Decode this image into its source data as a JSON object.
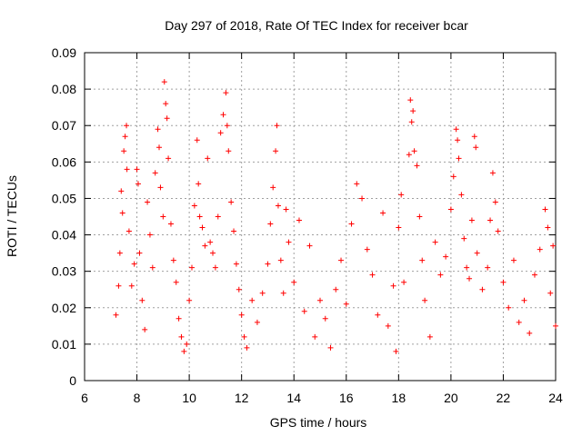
{
  "chart_data": {
    "type": "scatter",
    "title": "Day 297 of 2018, Rate Of TEC Index for receiver bcar",
    "xlabel": "GPS time / hours",
    "ylabel": "ROTI / TECUs",
    "xlim": [
      6,
      24
    ],
    "ylim": [
      0,
      0.09
    ],
    "x_ticks": [
      "6",
      "8",
      "10",
      "12",
      "14",
      "16",
      "18",
      "20",
      "22",
      "24"
    ],
    "y_ticks": [
      "0",
      "0.01",
      "0.02",
      "0.03",
      "0.04",
      "0.05",
      "0.06",
      "0.07",
      "0.08",
      "0.09"
    ],
    "grid": true,
    "marker": "plus",
    "color": "#ff0000",
    "points": [
      [
        7.2,
        0.018
      ],
      [
        7.3,
        0.026
      ],
      [
        7.35,
        0.035
      ],
      [
        7.4,
        0.052
      ],
      [
        7.45,
        0.046
      ],
      [
        7.5,
        0.063
      ],
      [
        7.55,
        0.067
      ],
      [
        7.6,
        0.07
      ],
      [
        7.62,
        0.058
      ],
      [
        7.7,
        0.041
      ],
      [
        7.8,
        0.026
      ],
      [
        7.9,
        0.032
      ],
      [
        8.0,
        0.058
      ],
      [
        8.05,
        0.054
      ],
      [
        8.1,
        0.035
      ],
      [
        8.2,
        0.022
      ],
      [
        8.3,
        0.014
      ],
      [
        8.4,
        0.049
      ],
      [
        8.5,
        0.04
      ],
      [
        8.6,
        0.031
      ],
      [
        8.7,
        0.057
      ],
      [
        8.8,
        0.069
      ],
      [
        8.85,
        0.064
      ],
      [
        8.9,
        0.053
      ],
      [
        9.0,
        0.045
      ],
      [
        9.05,
        0.082
      ],
      [
        9.1,
        0.076
      ],
      [
        9.15,
        0.072
      ],
      [
        9.2,
        0.061
      ],
      [
        9.3,
        0.043
      ],
      [
        9.4,
        0.033
      ],
      [
        9.5,
        0.027
      ],
      [
        9.6,
        0.017
      ],
      [
        9.7,
        0.012
      ],
      [
        9.8,
        0.008
      ],
      [
        9.9,
        0.01
      ],
      [
        10.0,
        0.022
      ],
      [
        10.1,
        0.031
      ],
      [
        10.2,
        0.048
      ],
      [
        10.3,
        0.066
      ],
      [
        10.35,
        0.054
      ],
      [
        10.4,
        0.045
      ],
      [
        10.5,
        0.042
      ],
      [
        10.6,
        0.037
      ],
      [
        10.7,
        0.061
      ],
      [
        10.8,
        0.038
      ],
      [
        10.9,
        0.035
      ],
      [
        11.0,
        0.031
      ],
      [
        11.1,
        0.045
      ],
      [
        11.2,
        0.068
      ],
      [
        11.3,
        0.073
      ],
      [
        11.4,
        0.079
      ],
      [
        11.45,
        0.07
      ],
      [
        11.5,
        0.063
      ],
      [
        11.6,
        0.049
      ],
      [
        11.7,
        0.041
      ],
      [
        11.8,
        0.032
      ],
      [
        11.9,
        0.025
      ],
      [
        12.0,
        0.018
      ],
      [
        12.1,
        0.012
      ],
      [
        12.2,
        0.009
      ],
      [
        12.4,
        0.022
      ],
      [
        12.6,
        0.016
      ],
      [
        12.8,
        0.024
      ],
      [
        13.0,
        0.032
      ],
      [
        13.1,
        0.043
      ],
      [
        13.2,
        0.053
      ],
      [
        13.3,
        0.063
      ],
      [
        13.35,
        0.07
      ],
      [
        13.4,
        0.048
      ],
      [
        13.5,
        0.033
      ],
      [
        13.6,
        0.024
      ],
      [
        13.7,
        0.047
      ],
      [
        13.8,
        0.038
      ],
      [
        14.0,
        0.027
      ],
      [
        14.2,
        0.044
      ],
      [
        14.4,
        0.019
      ],
      [
        14.6,
        0.037
      ],
      [
        14.8,
        0.012
      ],
      [
        15.0,
        0.022
      ],
      [
        15.2,
        0.017
      ],
      [
        15.4,
        0.009
      ],
      [
        15.6,
        0.025
      ],
      [
        15.8,
        0.033
      ],
      [
        16.0,
        0.021
      ],
      [
        16.2,
        0.043
      ],
      [
        16.4,
        0.054
      ],
      [
        16.6,
        0.05
      ],
      [
        16.8,
        0.036
      ],
      [
        17.0,
        0.029
      ],
      [
        17.2,
        0.018
      ],
      [
        17.4,
        0.046
      ],
      [
        17.6,
        0.015
      ],
      [
        17.8,
        0.026
      ],
      [
        17.9,
        0.008
      ],
      [
        18.0,
        0.042
      ],
      [
        18.1,
        0.051
      ],
      [
        18.2,
        0.027
      ],
      [
        18.4,
        0.062
      ],
      [
        18.45,
        0.077
      ],
      [
        18.5,
        0.071
      ],
      [
        18.55,
        0.074
      ],
      [
        18.6,
        0.063
      ],
      [
        18.7,
        0.059
      ],
      [
        18.8,
        0.045
      ],
      [
        18.9,
        0.033
      ],
      [
        19.0,
        0.022
      ],
      [
        19.2,
        0.012
      ],
      [
        19.4,
        0.038
      ],
      [
        19.6,
        0.029
      ],
      [
        19.8,
        0.034
      ],
      [
        20.0,
        0.047
      ],
      [
        20.1,
        0.056
      ],
      [
        20.2,
        0.069
      ],
      [
        20.25,
        0.066
      ],
      [
        20.3,
        0.061
      ],
      [
        20.4,
        0.051
      ],
      [
        20.5,
        0.039
      ],
      [
        20.6,
        0.031
      ],
      [
        20.7,
        0.028
      ],
      [
        20.8,
        0.044
      ],
      [
        20.9,
        0.067
      ],
      [
        20.95,
        0.064
      ],
      [
        21.0,
        0.035
      ],
      [
        21.2,
        0.025
      ],
      [
        21.4,
        0.031
      ],
      [
        21.5,
        0.044
      ],
      [
        21.6,
        0.057
      ],
      [
        21.7,
        0.049
      ],
      [
        21.8,
        0.041
      ],
      [
        22.0,
        0.027
      ],
      [
        22.2,
        0.02
      ],
      [
        22.4,
        0.033
      ],
      [
        22.6,
        0.016
      ],
      [
        22.8,
        0.022
      ],
      [
        23.0,
        0.013
      ],
      [
        23.2,
        0.029
      ],
      [
        23.4,
        0.036
      ],
      [
        23.6,
        0.047
      ],
      [
        23.7,
        0.042
      ],
      [
        23.8,
        0.024
      ],
      [
        23.9,
        0.037
      ],
      [
        24.0,
        0.015
      ]
    ]
  }
}
